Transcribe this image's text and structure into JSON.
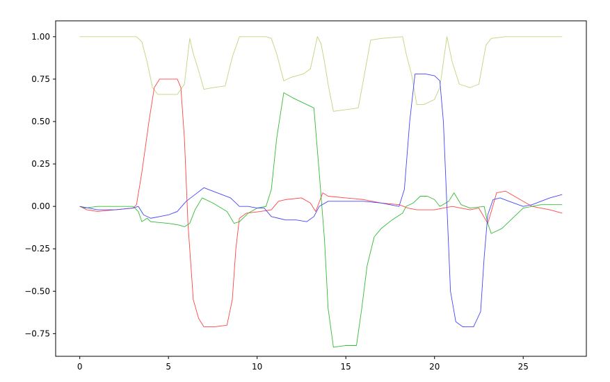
{
  "chart_data": {
    "type": "line",
    "title": "",
    "xlabel": "",
    "ylabel": "",
    "xlim": [
      -1.36,
      28.56
    ],
    "ylim": [
      -0.8835,
      1.0935
    ],
    "grid": false,
    "legend": "none",
    "xticks": [
      0,
      5,
      10,
      15,
      20,
      25
    ],
    "xtick_labels": [
      "0",
      "5",
      "10",
      "15",
      "20",
      "25"
    ],
    "yticks": [
      1.0,
      0.75,
      0.5,
      0.25,
      0.0,
      -0.25,
      -0.5,
      -0.75
    ],
    "ytick_labels": [
      "1.00",
      "0.75",
      "0.50",
      "0.25",
      "0.00",
      "−0.25",
      "−0.50",
      "−0.75"
    ],
    "series": [
      {
        "color": "#bcd67a",
        "points": [
          [
            0,
            1.0
          ],
          [
            3.2,
            1.0
          ],
          [
            3.5,
            0.97
          ],
          [
            3.8,
            0.85
          ],
          [
            4.1,
            0.7
          ],
          [
            4.4,
            0.66
          ],
          [
            5.0,
            0.66
          ],
          [
            5.5,
            0.66
          ],
          [
            5.9,
            0.72
          ],
          [
            6.2,
            0.99
          ],
          [
            6.4,
            0.9
          ],
          [
            6.7,
            0.8
          ],
          [
            7.0,
            0.69
          ],
          [
            7.5,
            0.7
          ],
          [
            8.2,
            0.71
          ],
          [
            8.6,
            0.88
          ],
          [
            9.0,
            1.0
          ],
          [
            10.5,
            1.0
          ],
          [
            10.8,
            0.99
          ],
          [
            11.1,
            0.9
          ],
          [
            11.5,
            0.74
          ],
          [
            11.9,
            0.76
          ],
          [
            12.6,
            0.78
          ],
          [
            13.0,
            0.81
          ],
          [
            13.4,
            1.0
          ],
          [
            13.6,
            0.96
          ],
          [
            13.8,
            0.85
          ],
          [
            14.0,
            0.72
          ],
          [
            14.3,
            0.56
          ],
          [
            15.0,
            0.57
          ],
          [
            15.7,
            0.58
          ],
          [
            16.0,
            0.75
          ],
          [
            16.4,
            0.98
          ],
          [
            17.0,
            0.99
          ],
          [
            18.2,
            1.0
          ],
          [
            18.4,
            0.9
          ],
          [
            18.7,
            0.78
          ],
          [
            19.0,
            0.6
          ],
          [
            19.4,
            0.6
          ],
          [
            20.0,
            0.63
          ],
          [
            20.3,
            0.7
          ],
          [
            20.7,
            1.0
          ],
          [
            21.0,
            0.85
          ],
          [
            21.4,
            0.72
          ],
          [
            22.0,
            0.7
          ],
          [
            22.5,
            0.72
          ],
          [
            22.9,
            0.95
          ],
          [
            23.2,
            0.99
          ],
          [
            24.0,
            1.0
          ],
          [
            27.2,
            1.0
          ]
        ]
      },
      {
        "color": "#ff4444",
        "points": [
          [
            0,
            0.0
          ],
          [
            0.4,
            -0.02
          ],
          [
            1.0,
            -0.03
          ],
          [
            2.0,
            -0.02
          ],
          [
            3.0,
            -0.01
          ],
          [
            3.2,
            0.01
          ],
          [
            3.5,
            0.2
          ],
          [
            3.9,
            0.5
          ],
          [
            4.2,
            0.7
          ],
          [
            4.5,
            0.75
          ],
          [
            5.5,
            0.75
          ],
          [
            5.7,
            0.7
          ],
          [
            5.9,
            0.4
          ],
          [
            6.1,
            -0.1
          ],
          [
            6.4,
            -0.55
          ],
          [
            6.7,
            -0.66
          ],
          [
            7.0,
            -0.71
          ],
          [
            7.6,
            -0.71
          ],
          [
            8.3,
            -0.7
          ],
          [
            8.6,
            -0.55
          ],
          [
            8.8,
            -0.25
          ],
          [
            9.0,
            -0.07
          ],
          [
            9.4,
            -0.04
          ],
          [
            10.2,
            -0.03
          ],
          [
            10.8,
            -0.02
          ],
          [
            11.2,
            0.03
          ],
          [
            11.6,
            0.04
          ],
          [
            12.5,
            0.05
          ],
          [
            13.0,
            0.02
          ],
          [
            13.3,
            -0.03
          ],
          [
            13.7,
            0.08
          ],
          [
            14.0,
            0.06
          ],
          [
            15.0,
            0.05
          ],
          [
            16.0,
            0.04
          ],
          [
            16.5,
            0.03
          ],
          [
            17.0,
            0.02
          ],
          [
            18.0,
            0.01
          ],
          [
            18.5,
            -0.01
          ],
          [
            19.0,
            -0.02
          ],
          [
            20.0,
            -0.02
          ],
          [
            20.5,
            -0.01
          ],
          [
            21.0,
            0.0
          ],
          [
            22.0,
            -0.02
          ],
          [
            22.5,
            -0.01
          ],
          [
            23.0,
            -0.1
          ],
          [
            23.2,
            -0.03
          ],
          [
            23.5,
            0.08
          ],
          [
            24.0,
            0.09
          ],
          [
            24.5,
            0.06
          ],
          [
            25.5,
            0.0
          ],
          [
            26.5,
            -0.02
          ],
          [
            27.2,
            -0.04
          ]
        ]
      },
      {
        "color": "#33bb33",
        "points": [
          [
            0,
            0.0
          ],
          [
            0.3,
            -0.01
          ],
          [
            1.0,
            0.0
          ],
          [
            2.0,
            0.0
          ],
          [
            3.0,
            0.0
          ],
          [
            3.3,
            -0.03
          ],
          [
            3.5,
            -0.09
          ],
          [
            3.8,
            -0.07
          ],
          [
            4.0,
            -0.09
          ],
          [
            5.0,
            -0.1
          ],
          [
            5.6,
            -0.11
          ],
          [
            5.9,
            -0.12
          ],
          [
            6.2,
            -0.1
          ],
          [
            6.5,
            -0.02
          ],
          [
            6.9,
            0.05
          ],
          [
            7.5,
            0.02
          ],
          [
            8.3,
            -0.03
          ],
          [
            8.7,
            -0.1
          ],
          [
            9.0,
            -0.09
          ],
          [
            9.5,
            -0.04
          ],
          [
            10.0,
            -0.01
          ],
          [
            10.5,
            0.0
          ],
          [
            10.8,
            0.1
          ],
          [
            11.1,
            0.4
          ],
          [
            11.5,
            0.67
          ],
          [
            12.0,
            0.64
          ],
          [
            12.8,
            0.6
          ],
          [
            13.2,
            0.58
          ],
          [
            13.5,
            0.2
          ],
          [
            13.8,
            -0.2
          ],
          [
            14.0,
            -0.6
          ],
          [
            14.3,
            -0.83
          ],
          [
            15.0,
            -0.82
          ],
          [
            15.6,
            -0.82
          ],
          [
            15.9,
            -0.6
          ],
          [
            16.2,
            -0.35
          ],
          [
            16.6,
            -0.18
          ],
          [
            17.0,
            -0.13
          ],
          [
            17.6,
            -0.08
          ],
          [
            18.2,
            -0.04
          ],
          [
            18.4,
            0.0
          ],
          [
            18.8,
            0.02
          ],
          [
            19.2,
            0.06
          ],
          [
            19.6,
            0.06
          ],
          [
            20.0,
            0.04
          ],
          [
            20.3,
            0.0
          ],
          [
            20.8,
            0.03
          ],
          [
            21.1,
            0.08
          ],
          [
            21.5,
            0.01
          ],
          [
            22.0,
            -0.01
          ],
          [
            22.8,
            0.0
          ],
          [
            23.0,
            -0.1
          ],
          [
            23.2,
            -0.16
          ],
          [
            23.8,
            -0.13
          ],
          [
            24.5,
            -0.06
          ],
          [
            25.0,
            -0.01
          ],
          [
            26.0,
            0.01
          ],
          [
            26.7,
            0.01
          ],
          [
            27.2,
            0.01
          ]
        ]
      },
      {
        "color": "#4444ff",
        "points": [
          [
            0,
            0.0
          ],
          [
            0.5,
            -0.01
          ],
          [
            1.0,
            -0.02
          ],
          [
            2.0,
            -0.02
          ],
          [
            3.0,
            -0.01
          ],
          [
            3.3,
            0.0
          ],
          [
            3.6,
            -0.05
          ],
          [
            4.0,
            -0.07
          ],
          [
            4.5,
            -0.06
          ],
          [
            5.0,
            -0.05
          ],
          [
            5.5,
            -0.03
          ],
          [
            6.0,
            0.03
          ],
          [
            6.5,
            0.07
          ],
          [
            7.0,
            0.11
          ],
          [
            7.5,
            0.09
          ],
          [
            8.0,
            0.07
          ],
          [
            8.5,
            0.05
          ],
          [
            9.0,
            0.0
          ],
          [
            9.5,
            0.0
          ],
          [
            10.0,
            -0.01
          ],
          [
            10.4,
            -0.01
          ],
          [
            10.8,
            -0.06
          ],
          [
            11.2,
            -0.07
          ],
          [
            11.6,
            -0.08
          ],
          [
            12.2,
            -0.08
          ],
          [
            12.8,
            -0.09
          ],
          [
            13.2,
            -0.06
          ],
          [
            13.5,
            0.0
          ],
          [
            14.0,
            0.03
          ],
          [
            15.0,
            0.03
          ],
          [
            16.0,
            0.03
          ],
          [
            17.0,
            0.02
          ],
          [
            18.0,
            0.0
          ],
          [
            18.3,
            0.1
          ],
          [
            18.6,
            0.5
          ],
          [
            18.9,
            0.78
          ],
          [
            19.5,
            0.78
          ],
          [
            20.0,
            0.77
          ],
          [
            20.3,
            0.74
          ],
          [
            20.5,
            0.5
          ],
          [
            20.7,
            0.0
          ],
          [
            20.9,
            -0.5
          ],
          [
            21.2,
            -0.68
          ],
          [
            21.6,
            -0.71
          ],
          [
            22.2,
            -0.71
          ],
          [
            22.6,
            -0.62
          ],
          [
            22.8,
            -0.3
          ],
          [
            23.0,
            -0.05
          ],
          [
            23.3,
            0.04
          ],
          [
            23.7,
            0.05
          ],
          [
            24.2,
            0.03
          ],
          [
            25.0,
            0.0
          ],
          [
            25.5,
            0.01
          ],
          [
            26.0,
            0.03
          ],
          [
            26.5,
            0.05
          ],
          [
            27.2,
            0.07
          ]
        ]
      }
    ]
  }
}
